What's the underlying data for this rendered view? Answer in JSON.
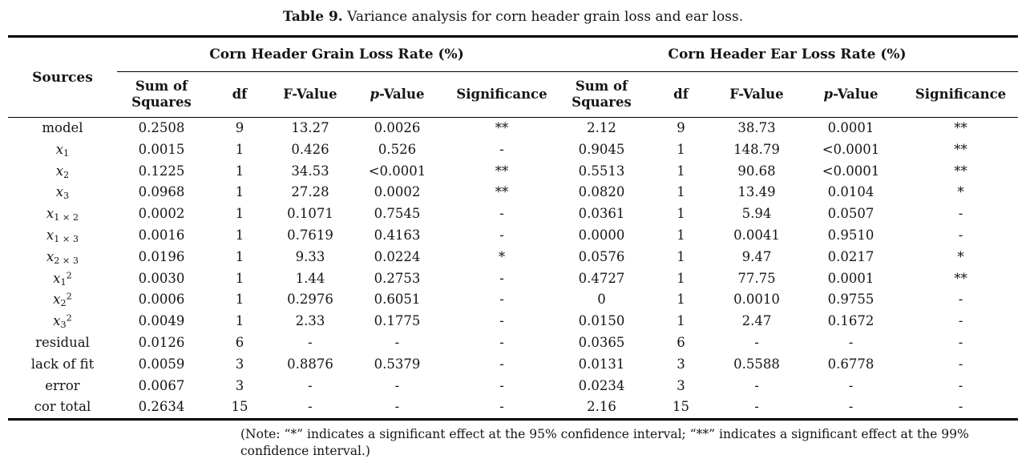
{
  "caption": {
    "label": "Table 9.",
    "text": " Variance analysis for corn header grain loss and ear loss."
  },
  "table": {
    "sources_header": "Sources",
    "groups": [
      {
        "key": "grain",
        "label": "Corn Header Grain Loss Rate (%)"
      },
      {
        "key": "ear",
        "label": "Corn Header Ear Loss Rate (%)"
      }
    ],
    "col_headers": [
      {
        "key": "sum-of-squares",
        "text": "Sum of\nSquares"
      },
      {
        "key": "df",
        "text": "df"
      },
      {
        "key": "f-value",
        "text": "F-Value"
      },
      {
        "key": "p-value",
        "italic_prefix": "p",
        "text": "-Value"
      },
      {
        "key": "significance",
        "text": "Significance"
      }
    ],
    "rows": [
      {
        "source": {
          "text": "model"
        },
        "grain": [
          "0.2508",
          "9",
          "13.27",
          "0.0026",
          "**"
        ],
        "ear": [
          "2.12",
          "9",
          "38.73",
          "0.0001",
          "**"
        ]
      },
      {
        "source": {
          "base": "x",
          "sub": "1"
        },
        "grain": [
          "0.0015",
          "1",
          "0.426",
          "0.526",
          "-"
        ],
        "ear": [
          "0.9045",
          "1",
          "148.79",
          "<0.0001",
          "**"
        ]
      },
      {
        "source": {
          "base": "x",
          "sub": "2"
        },
        "grain": [
          "0.1225",
          "1",
          "34.53",
          "<0.0001",
          "**"
        ],
        "ear": [
          "0.5513",
          "1",
          "90.68",
          "<0.0001",
          "**"
        ]
      },
      {
        "source": {
          "base": "x",
          "sub": "3"
        },
        "grain": [
          "0.0968",
          "1",
          "27.28",
          "0.0002",
          "**"
        ],
        "ear": [
          "0.0820",
          "1",
          "13.49",
          "0.0104",
          "*"
        ]
      },
      {
        "source": {
          "base": "x",
          "sub": "1 × 2"
        },
        "grain": [
          "0.0002",
          "1",
          "0.1071",
          "0.7545",
          "-"
        ],
        "ear": [
          "0.0361",
          "1",
          "5.94",
          "0.0507",
          "-"
        ]
      },
      {
        "source": {
          "base": "x",
          "sub": "1 × 3"
        },
        "grain": [
          "0.0016",
          "1",
          "0.7619",
          "0.4163",
          "-"
        ],
        "ear": [
          "0.0000",
          "1",
          "0.0041",
          "0.9510",
          "-"
        ]
      },
      {
        "source": {
          "base": "x",
          "sub": "2 × 3"
        },
        "grain": [
          "0.0196",
          "1",
          "9.33",
          "0.0224",
          "*"
        ],
        "ear": [
          "0.0576",
          "1",
          "9.47",
          "0.0217",
          "*"
        ]
      },
      {
        "source": {
          "base": "x",
          "sub": "1",
          "sup": "2"
        },
        "grain": [
          "0.0030",
          "1",
          "1.44",
          "0.2753",
          "-"
        ],
        "ear": [
          "0.4727",
          "1",
          "77.75",
          "0.0001",
          "**"
        ]
      },
      {
        "source": {
          "base": "x",
          "sub": "2",
          "sup": "2"
        },
        "grain": [
          "0.0006",
          "1",
          "0.2976",
          "0.6051",
          "-"
        ],
        "ear": [
          "0",
          "1",
          "0.0010",
          "0.9755",
          "-"
        ]
      },
      {
        "source": {
          "base": "x",
          "sub": "3",
          "sup": "2"
        },
        "grain": [
          "0.0049",
          "1",
          "2.33",
          "0.1775",
          "-"
        ],
        "ear": [
          "0.0150",
          "1",
          "2.47",
          "0.1672",
          "-"
        ]
      },
      {
        "source": {
          "text": "residual"
        },
        "grain": [
          "0.0126",
          "6",
          "-",
          "-",
          "-"
        ],
        "ear": [
          "0.0365",
          "6",
          "-",
          "-",
          "-"
        ]
      },
      {
        "source": {
          "text": "lack of fit"
        },
        "grain": [
          "0.0059",
          "3",
          "0.8876",
          "0.5379",
          "-"
        ],
        "ear": [
          "0.0131",
          "3",
          "0.5588",
          "0.6778",
          "-"
        ]
      },
      {
        "source": {
          "text": "error"
        },
        "grain": [
          "0.0067",
          "3",
          "-",
          "-",
          "-"
        ],
        "ear": [
          "0.0234",
          "3",
          "-",
          "-",
          "-"
        ]
      },
      {
        "source": {
          "text": "cor total"
        },
        "grain": [
          "0.2634",
          "15",
          "-",
          "-",
          "-"
        ],
        "ear": [
          "2.16",
          "15",
          "-",
          "-",
          "-"
        ]
      }
    ]
  },
  "footnote": "(Note: “*” indicates a significant effect at the 95% confidence interval; “**” indicates a significant effect at the 99%\nconfidence interval.)"
}
